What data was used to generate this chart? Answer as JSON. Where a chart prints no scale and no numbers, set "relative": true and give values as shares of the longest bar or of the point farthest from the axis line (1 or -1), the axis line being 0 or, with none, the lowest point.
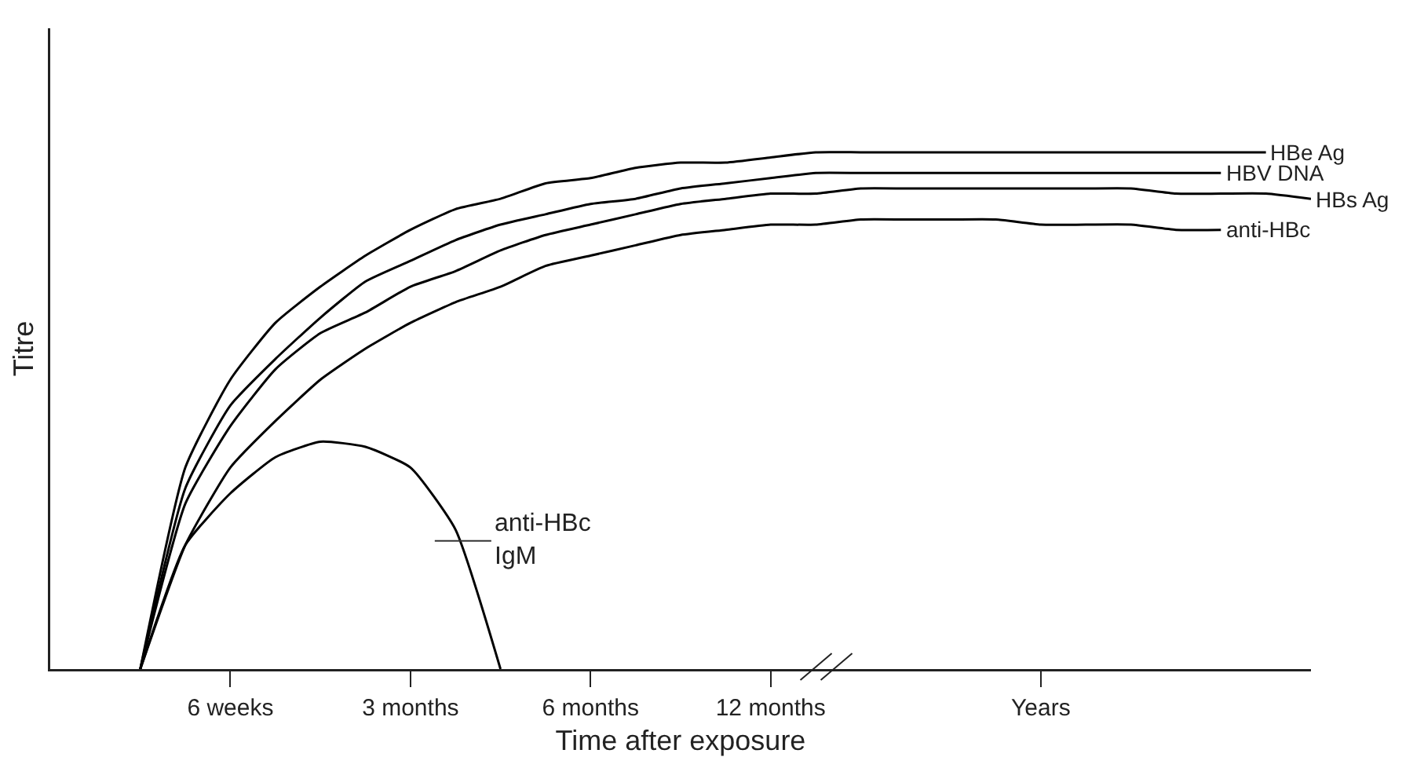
{
  "chart_data": {
    "type": "line",
    "relative": true,
    "xlabel": "Time after exposure",
    "ylabel": "Titre",
    "categories": [
      null,
      null,
      null,
      null,
      "6 weeks",
      null,
      null,
      null,
      "3 months",
      null,
      null,
      null,
      "6 months",
      null,
      null,
      null,
      "12 months",
      null,
      null,
      null,
      null,
      null,
      "Years",
      null,
      null,
      null,
      null,
      null,
      null
    ],
    "legend": false,
    "grid": false,
    "marker": "none",
    "line_style": "solid",
    "series": [
      {
        "name": "HBe Ag",
        "color": "#000000",
        "values": [
          null,
          null,
          0,
          0.39,
          0.56,
          0.67,
          0.74,
          0.8,
          0.85,
          0.89,
          0.91,
          0.94,
          0.95,
          0.97,
          0.98,
          0.98,
          0.99,
          1,
          1,
          1,
          1,
          1,
          1,
          1,
          1,
          1,
          1,
          1,
          null
        ]
      },
      {
        "name": "HBV DNA",
        "color": "#000000",
        "values": [
          null,
          null,
          0,
          0.35,
          0.51,
          0.6,
          0.68,
          0.75,
          0.79,
          0.83,
          0.86,
          0.88,
          0.9,
          0.91,
          0.93,
          0.94,
          0.95,
          0.96,
          0.96,
          0.96,
          0.96,
          0.96,
          0.96,
          0.96,
          0.96,
          0.96,
          0.96,
          null,
          null
        ]
      },
      {
        "name": "HBs Ag",
        "color": "#000000",
        "values": [
          null,
          null,
          0,
          0.32,
          0.47,
          0.58,
          0.65,
          0.69,
          0.74,
          0.77,
          0.81,
          0.84,
          0.86,
          0.88,
          0.9,
          0.91,
          0.92,
          0.92,
          0.93,
          0.93,
          0.93,
          0.93,
          0.93,
          0.93,
          0.93,
          0.92,
          0.92,
          0.92,
          0.91
        ]
      },
      {
        "name": "anti-HBc",
        "color": "#000000",
        "values": [
          null,
          null,
          0,
          0.24,
          0.39,
          0.48,
          0.56,
          0.62,
          0.67,
          0.71,
          0.74,
          0.78,
          0.8,
          0.82,
          0.84,
          0.85,
          0.86,
          0.86,
          0.87,
          0.87,
          0.87,
          0.87,
          0.86,
          0.86,
          0.86,
          0.85,
          0.85,
          null,
          null
        ]
      },
      {
        "color": "#000000",
        "values": [
          null,
          null,
          0,
          0.24,
          0.34,
          0.41,
          0.44,
          0.43,
          0.39,
          0.27,
          0,
          null,
          null,
          null,
          null,
          null,
          null,
          null,
          null,
          null,
          null,
          null,
          null,
          null,
          null,
          null,
          null,
          null,
          null
        ]
      }
    ],
    "annotations": [
      "anti-HBc\nIgM"
    ]
  }
}
